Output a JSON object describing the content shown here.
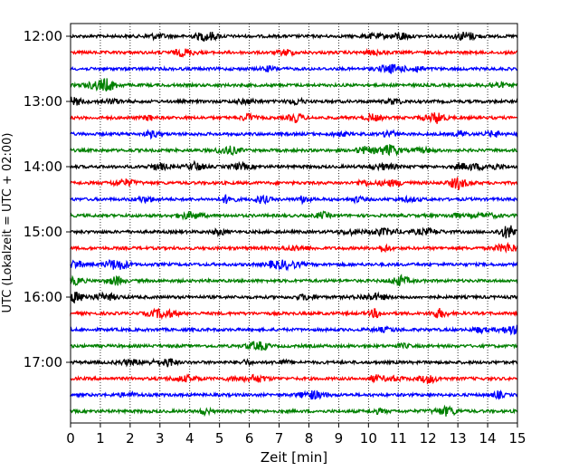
{
  "chart_data": {
    "type": "line",
    "title": "",
    "xlabel": "Zeit  [min]",
    "ylabel": "UTC (Lokalzeit = UTC + 02:00)",
    "xlim": [
      0,
      15
    ],
    "x_ticks": [
      "0",
      "1",
      "2",
      "3",
      "4",
      "5",
      "6",
      "7",
      "8",
      "9",
      "10",
      "11",
      "12",
      "13",
      "14",
      "15"
    ],
    "y_ticks": [
      "12:00",
      "13:00",
      "14:00",
      "15:00",
      "16:00",
      "17:00"
    ],
    "grid": "vertical dotted",
    "trace_interval_min": 15,
    "colors": [
      "#000000",
      "#ff0000",
      "#0000ff",
      "#008000"
    ],
    "series": [
      {
        "start": "12:00",
        "color": "#000000"
      },
      {
        "start": "12:15",
        "color": "#ff0000"
      },
      {
        "start": "12:30",
        "color": "#0000ff"
      },
      {
        "start": "12:45",
        "color": "#008000"
      },
      {
        "start": "13:00",
        "color": "#000000"
      },
      {
        "start": "13:15",
        "color": "#ff0000"
      },
      {
        "start": "13:30",
        "color": "#0000ff"
      },
      {
        "start": "13:45",
        "color": "#008000"
      },
      {
        "start": "14:00",
        "color": "#000000"
      },
      {
        "start": "14:15",
        "color": "#ff0000"
      },
      {
        "start": "14:30",
        "color": "#0000ff"
      },
      {
        "start": "14:45",
        "color": "#008000"
      },
      {
        "start": "15:00",
        "color": "#000000"
      },
      {
        "start": "15:15",
        "color": "#ff0000"
      },
      {
        "start": "15:30",
        "color": "#0000ff"
      },
      {
        "start": "15:45",
        "color": "#008000"
      },
      {
        "start": "16:00",
        "color": "#000000"
      },
      {
        "start": "16:15",
        "color": "#ff0000"
      },
      {
        "start": "16:30",
        "color": "#0000ff"
      },
      {
        "start": "16:45",
        "color": "#008000"
      },
      {
        "start": "17:00",
        "color": "#000000"
      },
      {
        "start": "17:15",
        "color": "#ff0000"
      },
      {
        "start": "17:30",
        "color": "#0000ff"
      },
      {
        "start": "17:45",
        "color": "#008000"
      }
    ]
  }
}
